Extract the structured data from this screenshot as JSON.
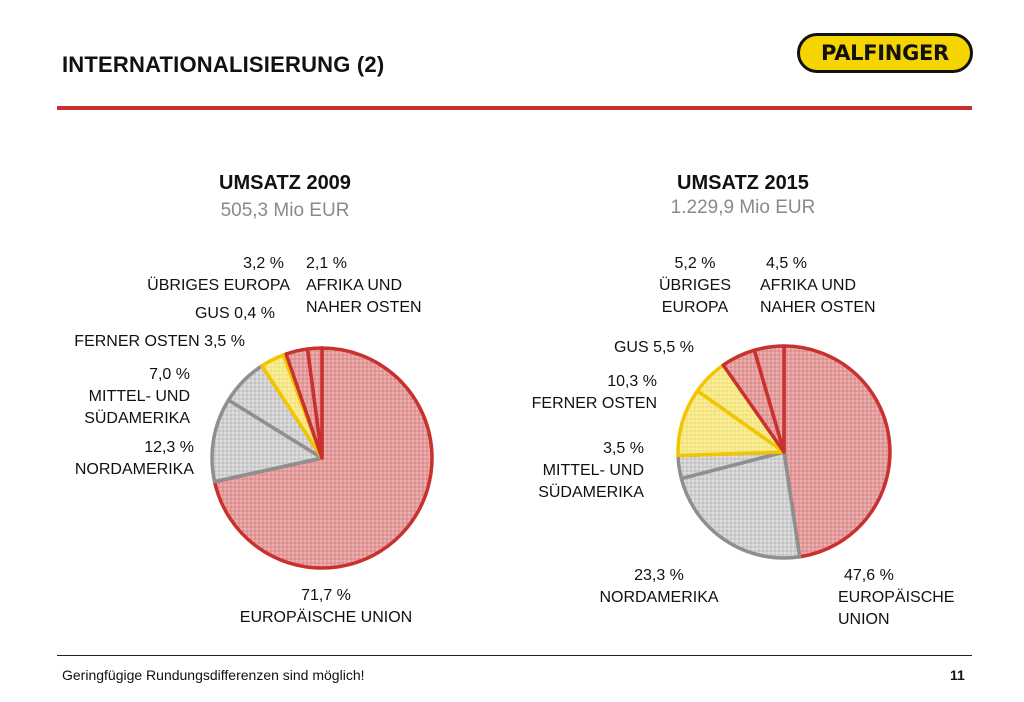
{
  "header": {
    "title": "INTERNATIONALISIERUNG (2)",
    "logo_text": "PALFINGER"
  },
  "footer": {
    "note": "Geringfügige Rundungsdifferenzen sind möglich!",
    "page": "11"
  },
  "colors": {
    "accent_red": "#c8312e",
    "eu": "#e8a0a0",
    "eu_stroke": "#c8312e",
    "gray": "#d6d6d6",
    "gray_stroke": "#8f8f8f",
    "yellow": "#f6e98a",
    "yellow_stroke": "#f2c500"
  },
  "chart_data": [
    {
      "type": "pie",
      "title": "UMSATZ 2009",
      "subtitle": "505,3 Mio EUR",
      "slices": [
        {
          "label": "EUROPÄISCHE UNION",
          "value": 71.7,
          "value_text": "71,7 %",
          "group": "red"
        },
        {
          "label": "NORDAMERIKA",
          "value": 12.3,
          "value_text": "12,3 %",
          "group": "gray"
        },
        {
          "label": "MITTEL- UND SÜDAMERIKA",
          "value": 7.0,
          "value_text": "7,0 %",
          "group": "gray"
        },
        {
          "label": "FERNER OSTEN",
          "value": 3.5,
          "value_text": "3,5 %",
          "group": "yellow"
        },
        {
          "label": "GUS",
          "value": 0.4,
          "value_text": "0,4 %",
          "group": "yellow"
        },
        {
          "label": "ÜBRIGES EUROPA",
          "value": 3.2,
          "value_text": "3,2 %",
          "group": "red"
        },
        {
          "label": "AFRIKA UND NAHER OSTEN",
          "value": 2.1,
          "value_text": "2,1 %",
          "group": "red"
        }
      ]
    },
    {
      "type": "pie",
      "title": "UMSATZ 2015",
      "subtitle": "1.229,9 Mio EUR",
      "slices": [
        {
          "label": "EUROPÄISCHE UNION",
          "value": 47.6,
          "value_text": "47,6 %",
          "group": "red"
        },
        {
          "label": "NORDAMERIKA",
          "value": 23.3,
          "value_text": "23,3 %",
          "group": "gray"
        },
        {
          "label": "MITTEL- UND SÜDAMERIKA",
          "value": 3.5,
          "value_text": "3,5 %",
          "group": "gray"
        },
        {
          "label": "FERNER OSTEN",
          "value": 10.3,
          "value_text": "10,3 %",
          "group": "yellow"
        },
        {
          "label": "GUS",
          "value": 5.5,
          "value_text": "5,5 %",
          "group": "yellow"
        },
        {
          "label": "ÜBRIGES EUROPA",
          "value": 5.2,
          "value_text": "5,2 %",
          "group": "red"
        },
        {
          "label": "AFRIKA UND NAHER OSTEN",
          "value": 4.5,
          "value_text": "4,5 %",
          "group": "red"
        }
      ]
    }
  ],
  "labels2009": {
    "eu_value": "71,7 %",
    "eu_name": "EUROPÄISCHE UNION",
    "na_value": "12,3 %",
    "na_name": "NORDAMERIKA",
    "sa_value": "7,0 %",
    "sa_name1": "MITTEL- UND",
    "sa_name2": "SÜDAMERIKA",
    "fo": "FERNER OSTEN 3,5 %",
    "gus": "GUS 0,4 %",
    "ue_value": "3,2 %",
    "ue_name": "ÜBRIGES EUROPA",
    "af_value": "2,1 %",
    "af_name1": "AFRIKA UND",
    "af_name2": "NAHER OSTEN"
  },
  "labels2015": {
    "eu_value": "47,6 %",
    "eu_name1": "EUROPÄISCHE",
    "eu_name2": "UNION",
    "na_value": "23,3 %",
    "na_name": "NORDAMERIKA",
    "sa_value": "3,5 %",
    "sa_name1": "MITTEL- UND",
    "sa_name2": "SÜDAMERIKA",
    "fo_value": "10,3 %",
    "fo_name": "FERNER OSTEN",
    "gus": "GUS 5,5 %",
    "ue_value": "5,2 %",
    "ue_name1": "ÜBRIGES",
    "ue_name2": "EUROPA",
    "af_value": "4,5 %",
    "af_name1": "AFRIKA UND",
    "af_name2": "NAHER OSTEN"
  }
}
